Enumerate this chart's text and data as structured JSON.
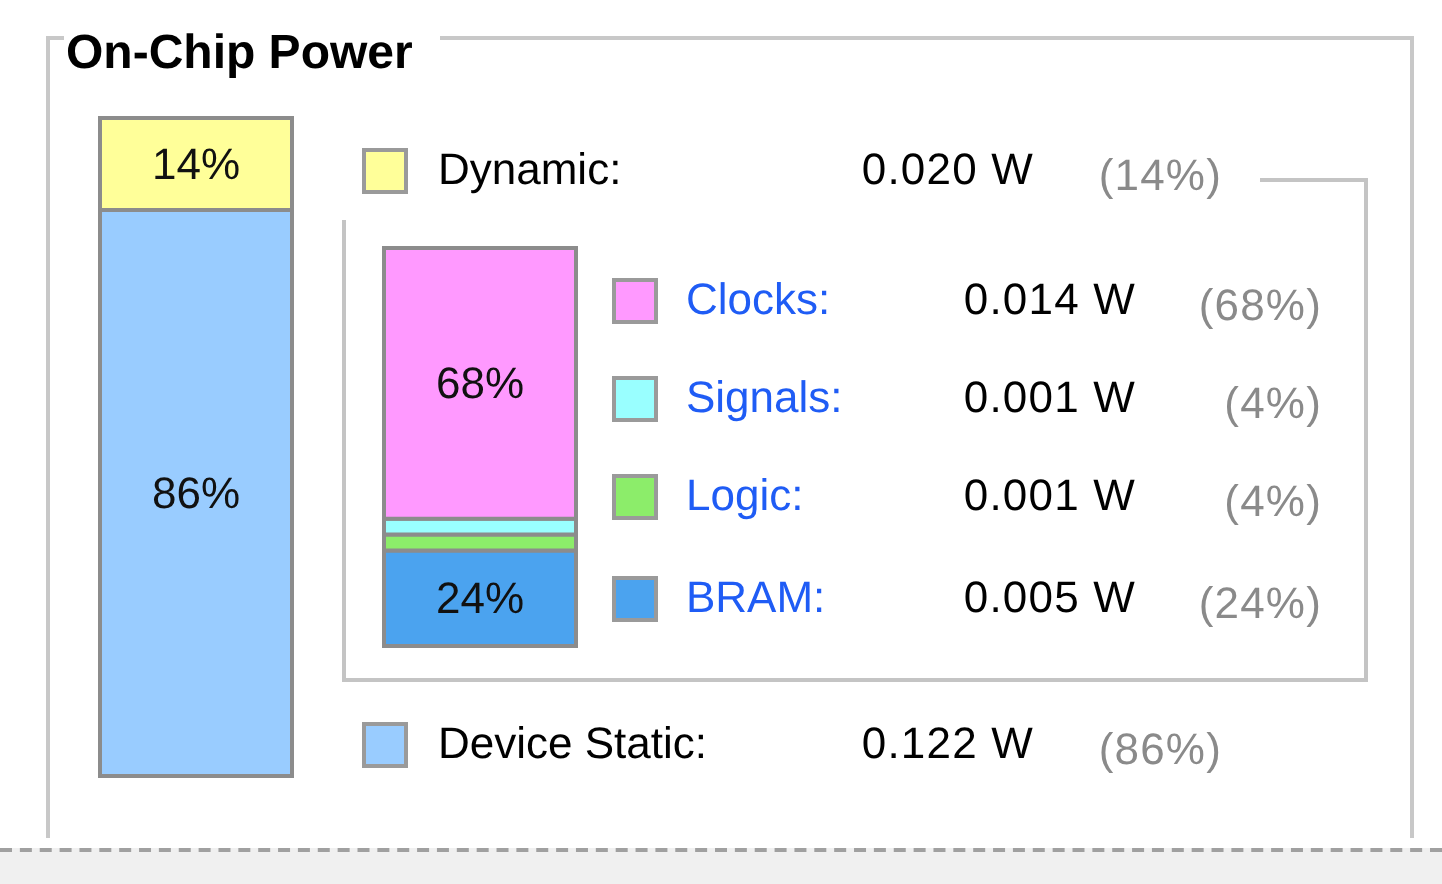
{
  "chart_data": [
    {
      "type": "bar",
      "title": "On-Chip Power",
      "categories": [
        null
      ],
      "stacked": true,
      "legend": "right",
      "series": [
        {
          "name": "Device Static:",
          "color": "#99ccff",
          "values": [
            86
          ],
          "value_labels": [
            "86%"
          ]
        },
        {
          "name": "Dynamic:",
          "color": "#ffff99",
          "values": [
            14
          ],
          "value_labels": [
            "14%"
          ]
        }
      ],
      "annotations": [
        "0.020 W",
        "(14%)",
        "0.122 W",
        "(86%)"
      ]
    },
    {
      "type": "bar",
      "categories": [
        null
      ],
      "stacked": true,
      "legend": "right",
      "series": [
        {
          "name": "BRAM:",
          "color": "#4ba3ef",
          "values": [
            24
          ],
          "value_labels": [
            "24%"
          ]
        },
        {
          "name": "Logic:",
          "color": "#8ced6a",
          "values": [
            4
          ],
          "value_labels": [
            null
          ]
        },
        {
          "name": "Signals:",
          "color": "#99ffff",
          "values": [
            4
          ],
          "value_labels": [
            null
          ]
        },
        {
          "name": "Clocks:",
          "color": "#ff99ff",
          "values": [
            68
          ],
          "value_labels": [
            "68%"
          ]
        }
      ],
      "annotations": [
        "0.014 W",
        "(68%)",
        "0.001 W",
        "(4%)",
        "0.001 W",
        "(4%)",
        "0.005 W",
        "(24%)"
      ]
    }
  ]
}
